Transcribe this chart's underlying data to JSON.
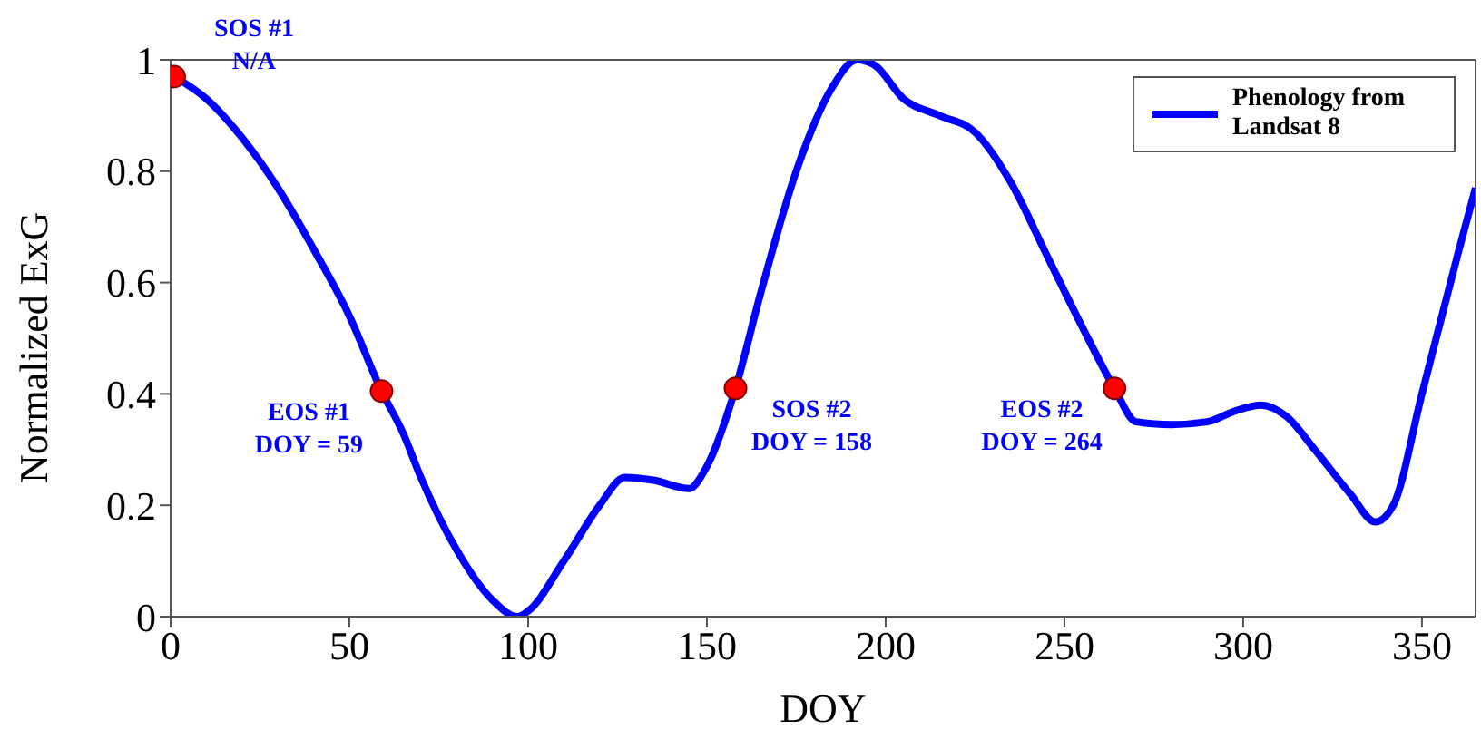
{
  "chart_data": {
    "type": "line",
    "xlabel": "DOY",
    "ylabel": "Normalized ExG",
    "xlim": [
      0,
      365
    ],
    "xticks": [
      0,
      50,
      100,
      150,
      200,
      250,
      300,
      350
    ],
    "ylim": [
      0,
      1
    ],
    "yticks": [
      0,
      0.2,
      0.4,
      0.6,
      0.8,
      1
    ],
    "legend": "top right",
    "series": [
      {
        "name": "Phenology from Landsat 8",
        "color": "#0000ff",
        "marker": "none",
        "x": [
          1,
          10,
          20,
          30,
          40,
          50,
          59,
          65,
          70,
          80,
          90,
          97,
          100,
          110,
          120,
          127,
          135,
          145,
          150,
          158,
          165,
          175,
          185,
          192,
          197,
          205,
          215,
          225,
          235,
          245,
          255,
          264,
          270,
          280,
          290,
          298,
          305,
          312,
          320,
          330,
          337,
          342,
          350,
          360,
          365
        ],
        "values": [
          0.97,
          0.93,
          0.86,
          0.77,
          0.66,
          0.54,
          0.405,
          0.33,
          0.25,
          0.12,
          0.03,
          0.0,
          0.01,
          0.1,
          0.2,
          0.25,
          0.245,
          0.23,
          0.27,
          0.41,
          0.58,
          0.8,
          0.95,
          1.0,
          0.99,
          0.93,
          0.9,
          0.87,
          0.78,
          0.65,
          0.52,
          0.41,
          0.35,
          0.345,
          0.35,
          0.37,
          0.38,
          0.36,
          0.3,
          0.22,
          0.17,
          0.2,
          0.4,
          0.65,
          0.77
        ]
      },
      {
        "type": "scatter",
        "color": "#ff0000",
        "marker": "circle",
        "x": [
          1,
          59,
          158,
          264
        ],
        "values": [
          0.97,
          0.405,
          0.41,
          0.41
        ]
      }
    ],
    "annotations": [
      {
        "text": "SOS #1\nN/A",
        "x": 1,
        "y": 0.97
      },
      {
        "text": "EOS #1\nDOY = 59",
        "x": 59,
        "y": 0.405
      },
      {
        "text": "SOS #2\nDOY = 158",
        "x": 158,
        "y": 0.41
      },
      {
        "text": "EOS #2\nDOY = 264",
        "x": 264,
        "y": 0.41
      }
    ]
  }
}
